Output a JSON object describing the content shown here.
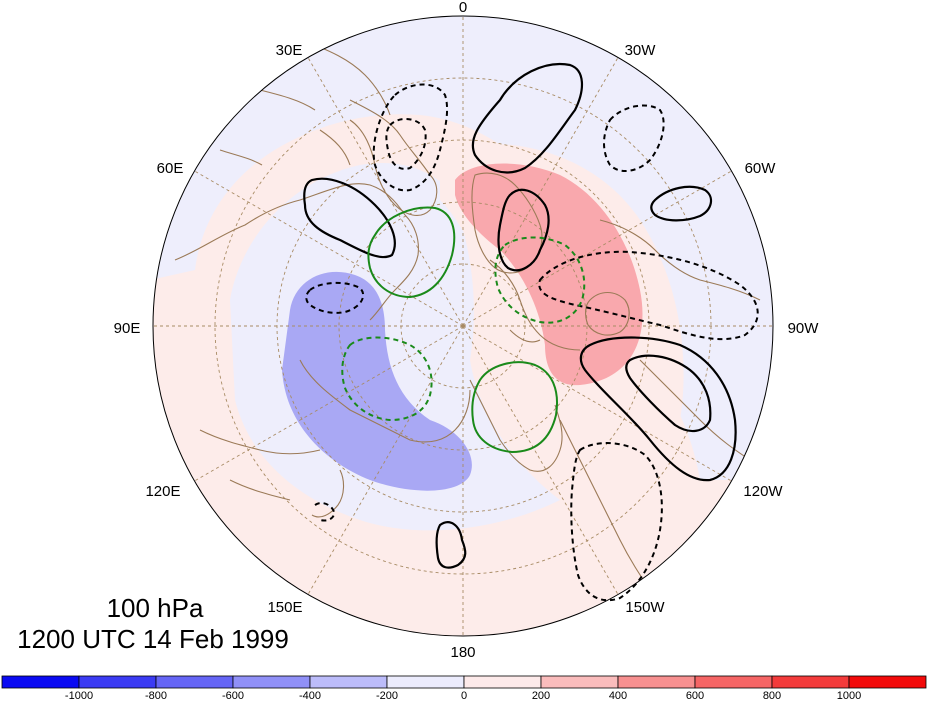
{
  "map": {
    "title_level": "100 hPa",
    "title_time": "1200 UTC 14 Feb 1999",
    "longitude_labels": [
      {
        "id": "lon-0",
        "text": "0"
      },
      {
        "id": "lon-30w",
        "text": "30W"
      },
      {
        "id": "lon-60w",
        "text": "60W"
      },
      {
        "id": "lon-90w",
        "text": "90W"
      },
      {
        "id": "lon-120w",
        "text": "120W"
      },
      {
        "id": "lon-150w",
        "text": "150W"
      },
      {
        "id": "lon-180",
        "text": "180"
      },
      {
        "id": "lon-150e",
        "text": "150E"
      },
      {
        "id": "lon-120e",
        "text": "120E"
      },
      {
        "id": "lon-90e",
        "text": "90E"
      },
      {
        "id": "lon-60e",
        "text": "60E"
      },
      {
        "id": "lon-30e",
        "text": "30E"
      }
    ],
    "projection": "north-polar-stereographic",
    "colors": {
      "positive_shading": "#f9a8ad",
      "positive_light": "#fdecea",
      "negative_shading": "#a9a8f4",
      "negative_light": "#eeeefc",
      "coastline": "#9b7a57",
      "grid": "#a88b64",
      "black_contour": "#000000",
      "green_contour": "#1a8a1a"
    }
  },
  "colorbar": {
    "labels": [
      "-1000",
      "-800",
      "-600",
      "-400",
      "-200",
      "0",
      "200",
      "400",
      "600",
      "800",
      "1000"
    ],
    "colors": [
      "#0a0af2",
      "#3b3bf3",
      "#6565f5",
      "#9090f7",
      "#bcbcfa",
      "#ececfd",
      "#fdeaea",
      "#fabcbc",
      "#f79090",
      "#f56565",
      "#f33b3b",
      "#f20a0a"
    ]
  }
}
